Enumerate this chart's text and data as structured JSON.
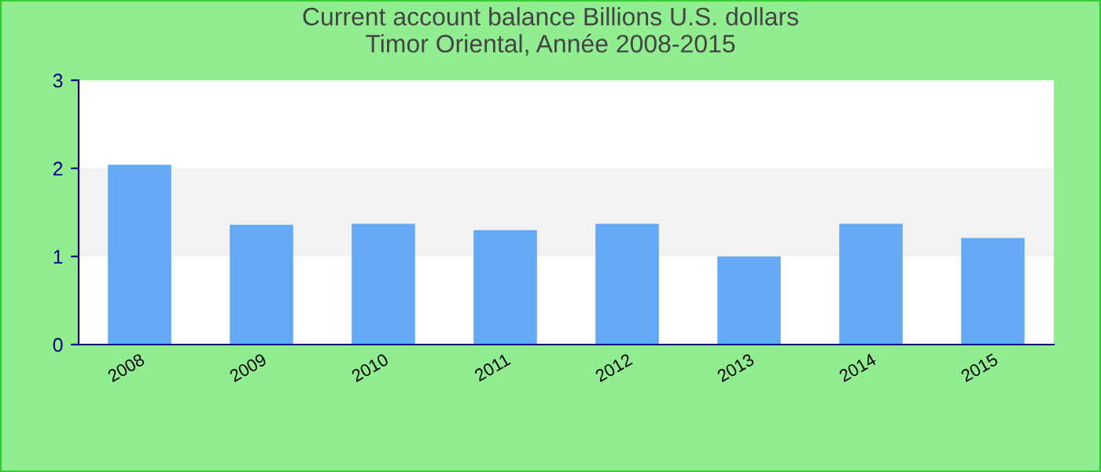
{
  "chart_data": {
    "type": "bar",
    "title": "Current account balance Billions U.S. dollars\nTimor Oriental, Année 2008-2015",
    "categories": [
      "2008",
      "2009",
      "2010",
      "2011",
      "2012",
      "2013",
      "2014",
      "2015"
    ],
    "values": [
      2.04,
      1.36,
      1.37,
      1.3,
      1.37,
      1.0,
      1.37,
      1.21
    ],
    "color": "#63a9f5",
    "ylim": [
      0,
      3
    ],
    "yticks": [
      0,
      1,
      2,
      3
    ],
    "bands": [
      {
        "axis": "y",
        "from": 1,
        "to": 2,
        "color": "#f2f2f2"
      }
    ],
    "grid": false,
    "legend": false
  }
}
